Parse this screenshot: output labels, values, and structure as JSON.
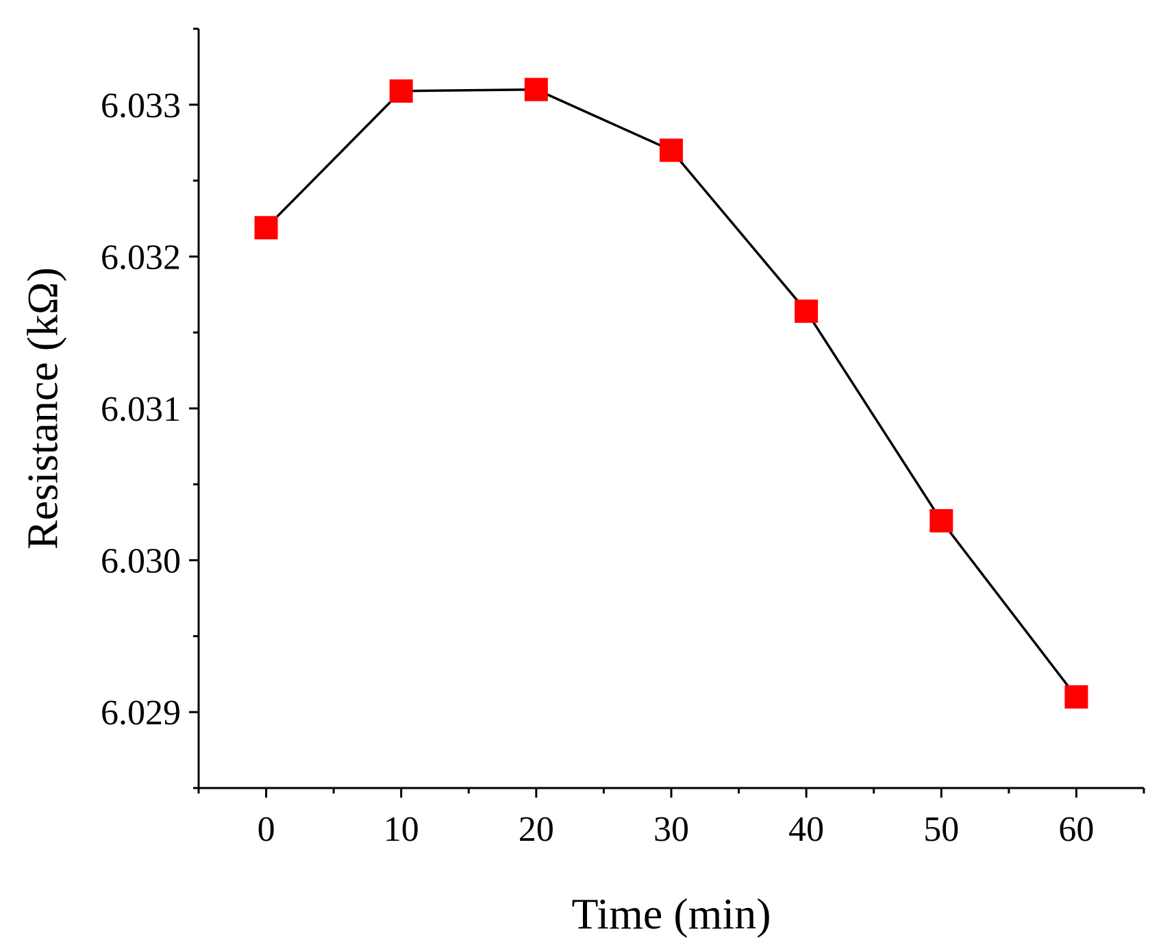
{
  "chart_data": {
    "type": "line",
    "title": "",
    "xlabel": "Time (min)",
    "ylabel": "Resistance (kΩ)",
    "xlim": [
      -5,
      65
    ],
    "ylim": [
      6.0285,
      6.0335
    ],
    "x_ticks": [
      0,
      10,
      20,
      30,
      40,
      50,
      60
    ],
    "x_tick_labels": [
      "0",
      "10",
      "20",
      "30",
      "40",
      "50",
      "60"
    ],
    "x_minor_ticks": [
      -5,
      5,
      15,
      25,
      35,
      45,
      55,
      65
    ],
    "y_ticks": [
      6.029,
      6.03,
      6.031,
      6.032,
      6.033
    ],
    "y_tick_labels": [
      "6.029",
      "6.030",
      "6.031",
      "6.032",
      "6.033"
    ],
    "y_minor_ticks": [
      6.0285,
      6.0295,
      6.0305,
      6.0315,
      6.0325,
      6.0335
    ],
    "grid": false,
    "series": [
      {
        "name": "Resistance",
        "x": [
          0,
          10,
          20,
          30,
          40,
          50,
          60
        ],
        "y": [
          6.03219,
          6.03309,
          6.0331,
          6.0327,
          6.03164,
          6.03026,
          6.0291
        ],
        "line_color": "#000000",
        "marker": "square",
        "marker_color": "#ff0000"
      }
    ]
  }
}
